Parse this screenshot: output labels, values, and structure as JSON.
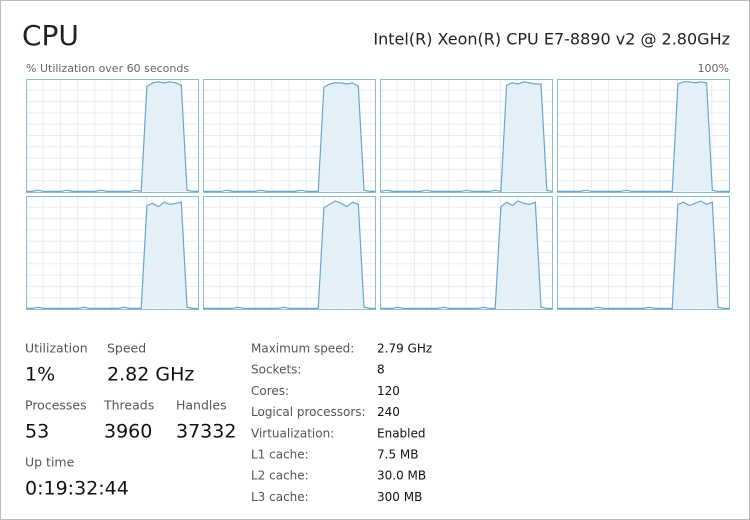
{
  "header": {
    "title": "CPU",
    "processor": "Intel(R) Xeon(R) CPU E7-8890 v2 @ 2.80GHz"
  },
  "graph_panel": {
    "caption": "% Utilization over 60 seconds",
    "max_label": "100%",
    "ylim": [
      0,
      100
    ],
    "xlim": [
      0,
      60
    ],
    "x": [
      0,
      2,
      4,
      6,
      8,
      10,
      12,
      14,
      16,
      18,
      20,
      22,
      24,
      26,
      28,
      30,
      32,
      34,
      36,
      38,
      40,
      42,
      44,
      46,
      48,
      50,
      52,
      54,
      56,
      58,
      60
    ],
    "graphs": [
      {
        "values": [
          1,
          1,
          2,
          1,
          1,
          1,
          1,
          2,
          1,
          1,
          1,
          1,
          1,
          2,
          1,
          1,
          1,
          1,
          1,
          2,
          1,
          94,
          97,
          98,
          97,
          98,
          97,
          95,
          2,
          1,
          1
        ]
      },
      {
        "values": [
          1,
          1,
          1,
          1,
          2,
          1,
          1,
          1,
          1,
          1,
          2,
          1,
          1,
          1,
          1,
          1,
          1,
          2,
          1,
          1,
          1,
          93,
          96,
          97,
          97,
          96,
          97,
          94,
          2,
          1,
          1
        ]
      },
      {
        "values": [
          1,
          2,
          1,
          1,
          1,
          1,
          1,
          1,
          2,
          1,
          1,
          1,
          1,
          1,
          1,
          2,
          1,
          1,
          1,
          1,
          2,
          1,
          95,
          97,
          96,
          98,
          97,
          96,
          96,
          2,
          1
        ]
      },
      {
        "values": [
          1,
          1,
          1,
          1,
          1,
          2,
          1,
          1,
          1,
          1,
          1,
          1,
          2,
          1,
          1,
          1,
          1,
          1,
          1,
          1,
          1,
          96,
          98,
          98,
          97,
          98,
          97,
          2,
          1,
          1,
          1
        ]
      },
      {
        "values": [
          1,
          1,
          2,
          1,
          1,
          1,
          1,
          1,
          1,
          1,
          2,
          1,
          1,
          1,
          1,
          1,
          1,
          2,
          1,
          1,
          1,
          92,
          94,
          91,
          95,
          93,
          94,
          95,
          2,
          1,
          1
        ]
      },
      {
        "values": [
          1,
          1,
          1,
          1,
          1,
          1,
          2,
          1,
          1,
          1,
          1,
          1,
          1,
          1,
          2,
          1,
          1,
          1,
          1,
          1,
          1,
          90,
          93,
          96,
          94,
          91,
          95,
          93,
          2,
          1,
          1
        ]
      },
      {
        "values": [
          1,
          1,
          1,
          2,
          1,
          1,
          1,
          1,
          1,
          1,
          1,
          2,
          1,
          1,
          1,
          1,
          1,
          1,
          2,
          1,
          1,
          91,
          95,
          92,
          96,
          94,
          93,
          95,
          2,
          1,
          1
        ]
      },
      {
        "values": [
          1,
          1,
          1,
          1,
          1,
          1,
          1,
          2,
          1,
          1,
          1,
          1,
          1,
          1,
          1,
          1,
          2,
          1,
          1,
          1,
          1,
          93,
          95,
          92,
          94,
          96,
          93,
          95,
          2,
          1,
          1
        ]
      }
    ]
  },
  "stats": [
    {
      "label": "Utilization",
      "value": "1%"
    },
    {
      "label": "Speed",
      "value": "2.82 GHz"
    },
    {
      "label": "Processes",
      "value": "53"
    },
    {
      "label": "Threads",
      "value": "3960"
    },
    {
      "label": "Handles",
      "value": "37332"
    },
    {
      "label": "Up time",
      "value": "0:19:32:44"
    }
  ],
  "details": [
    {
      "label": "Maximum speed:",
      "value": "2.79 GHz"
    },
    {
      "label": "Sockets:",
      "value": "8"
    },
    {
      "label": "Cores:",
      "value": "120"
    },
    {
      "label": "Logical processors:",
      "value": "240"
    },
    {
      "label": "Virtualization:",
      "value": "Enabled"
    },
    {
      "label": "L1 cache:",
      "value": "7.5 MB"
    },
    {
      "label": "L2 cache:",
      "value": "30.0 MB"
    },
    {
      "label": "L3 cache:",
      "value": "300 MB"
    }
  ]
}
